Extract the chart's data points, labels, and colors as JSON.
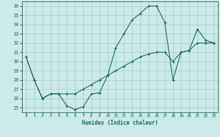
{
  "title": "",
  "xlabel": "Humidex (Indice chaleur)",
  "ylabel": "",
  "bg_color": "#cceae7",
  "grid_color": "#aad4d0",
  "line_color": "#1a6b5a",
  "xlim": [
    -0.5,
    23.5
  ],
  "ylim": [
    24.5,
    36.5
  ],
  "xticks": [
    0,
    1,
    2,
    3,
    4,
    5,
    6,
    7,
    8,
    9,
    10,
    11,
    12,
    13,
    14,
    15,
    16,
    17,
    18,
    19,
    20,
    21,
    22,
    23
  ],
  "yticks": [
    25,
    26,
    27,
    28,
    29,
    30,
    31,
    32,
    33,
    34,
    35,
    36
  ],
  "line1_x": [
    0,
    1,
    2,
    3,
    4,
    5,
    6,
    7,
    8,
    9,
    10,
    11,
    12,
    13,
    14,
    15,
    16,
    17,
    18,
    19,
    20,
    21,
    22,
    23
  ],
  "line1_y": [
    30.5,
    28,
    26,
    26.5,
    26.5,
    25.2,
    24.8,
    25.1,
    26.5,
    26.6,
    28.5,
    31.5,
    33,
    34.5,
    35.2,
    36.0,
    36.0,
    34.2,
    28.0,
    31.0,
    31.2,
    33.5,
    32.3,
    32.0
  ],
  "line2_x": [
    0,
    1,
    2,
    3,
    4,
    5,
    6,
    7,
    8,
    9,
    10,
    11,
    12,
    13,
    14,
    15,
    16,
    17,
    18,
    19,
    20,
    21,
    22,
    23
  ],
  "line2_y": [
    30.5,
    28.0,
    26.0,
    26.5,
    26.5,
    26.5,
    26.5,
    27.0,
    27.5,
    28.0,
    28.5,
    29.0,
    29.5,
    30.0,
    30.5,
    30.8,
    31.0,
    31.0,
    30.0,
    31.0,
    31.2,
    32.0,
    32.0,
    32.0
  ]
}
